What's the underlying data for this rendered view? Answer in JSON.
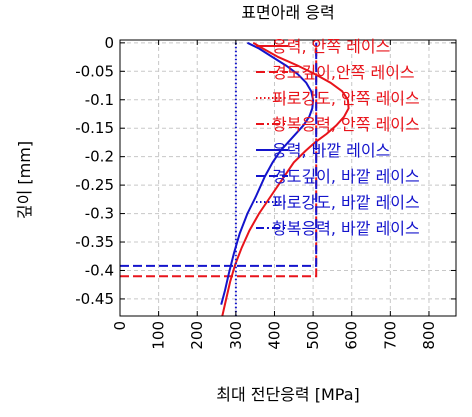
{
  "chart_data": {
    "type": "line",
    "title": "표면아래 응력",
    "xlabel": "최대 전단응력 [MPa]",
    "ylabel": "깊이 [mm]",
    "xlim": [
      0,
      870
    ],
    "ylim": [
      -0.48,
      0.005
    ],
    "xticks": [
      0,
      100,
      200,
      300,
      400,
      500,
      600,
      700,
      800
    ],
    "yticks": [
      0,
      -0.05,
      -0.1,
      -0.15,
      -0.2,
      -0.25,
      -0.3,
      -0.35,
      -0.4,
      -0.45
    ],
    "xtick_labels": [
      "0",
      "100",
      "200",
      "300",
      "400",
      "500",
      "600",
      "700",
      "800"
    ],
    "ytick_labels": [
      "0",
      "-0.05",
      "-0.1",
      "-0.15",
      "-0.2",
      "-0.25",
      "-0.3",
      "-0.35",
      "-0.4",
      "-0.45"
    ],
    "grid": true,
    "legend_position": "top-right",
    "series": [
      {
        "name": "응력, 안쪽 레이스",
        "color": "#e8141b",
        "style": "solid",
        "points": [
          [
            345,
            0
          ],
          [
            370,
            -0.01
          ],
          [
            410,
            -0.025
          ],
          [
            460,
            -0.04
          ],
          [
            505,
            -0.055
          ],
          [
            545,
            -0.07
          ],
          [
            575,
            -0.085
          ],
          [
            590,
            -0.1
          ],
          [
            592,
            -0.115
          ],
          [
            580,
            -0.13
          ],
          [
            560,
            -0.145
          ],
          [
            535,
            -0.16
          ],
          [
            505,
            -0.175
          ],
          [
            480,
            -0.19
          ],
          [
            450,
            -0.21
          ],
          [
            420,
            -0.24
          ],
          [
            390,
            -0.27
          ],
          [
            360,
            -0.3
          ],
          [
            335,
            -0.33
          ],
          [
            315,
            -0.36
          ],
          [
            298,
            -0.39
          ],
          [
            285,
            -0.42
          ],
          [
            275,
            -0.45
          ],
          [
            265,
            -0.48
          ]
        ]
      },
      {
        "name": "경도깊이,안쪽 레이스",
        "color": "#e8141b",
        "style": "dashed",
        "points": [
          [
            0,
            -0.41
          ],
          [
            508,
            -0.41
          ],
          [
            508,
            0
          ]
        ]
      },
      {
        "name": "피로강도, 안쪽 레이스",
        "color": "#e8141b",
        "style": "dotted",
        "points": []
      },
      {
        "name": "항복응력, 안쪽 레이스",
        "color": "#e8141b",
        "style": "dashdot",
        "points": []
      },
      {
        "name": "응력, 바깥 레이스",
        "color": "#1414cc",
        "style": "solid",
        "points": [
          [
            330,
            0
          ],
          [
            360,
            -0.01
          ],
          [
            395,
            -0.025
          ],
          [
            430,
            -0.04
          ],
          [
            460,
            -0.055
          ],
          [
            482,
            -0.07
          ],
          [
            495,
            -0.085
          ],
          [
            500,
            -0.1
          ],
          [
            498,
            -0.115
          ],
          [
            490,
            -0.13
          ],
          [
            475,
            -0.145
          ],
          [
            455,
            -0.16
          ],
          [
            435,
            -0.175
          ],
          [
            415,
            -0.19
          ],
          [
            395,
            -0.21
          ],
          [
            375,
            -0.235
          ],
          [
            352,
            -0.27
          ],
          [
            330,
            -0.3
          ],
          [
            310,
            -0.335
          ],
          [
            295,
            -0.37
          ],
          [
            282,
            -0.405
          ],
          [
            272,
            -0.435
          ],
          [
            262,
            -0.46
          ]
        ]
      },
      {
        "name": "경도깊이, 바깥 레이스",
        "color": "#1414cc",
        "style": "dashed",
        "points": [
          [
            0,
            -0.392
          ],
          [
            508,
            -0.392
          ],
          [
            508,
            0
          ]
        ]
      },
      {
        "name": "피로강도, 바깥 레이스",
        "color": "#1414cc",
        "style": "dotted",
        "points": [
          [
            300,
            0
          ],
          [
            300,
            -0.48
          ]
        ]
      },
      {
        "name": "항복응력, 바깥 레이스",
        "color": "#1414cc",
        "style": "dashdot",
        "points": []
      }
    ]
  }
}
